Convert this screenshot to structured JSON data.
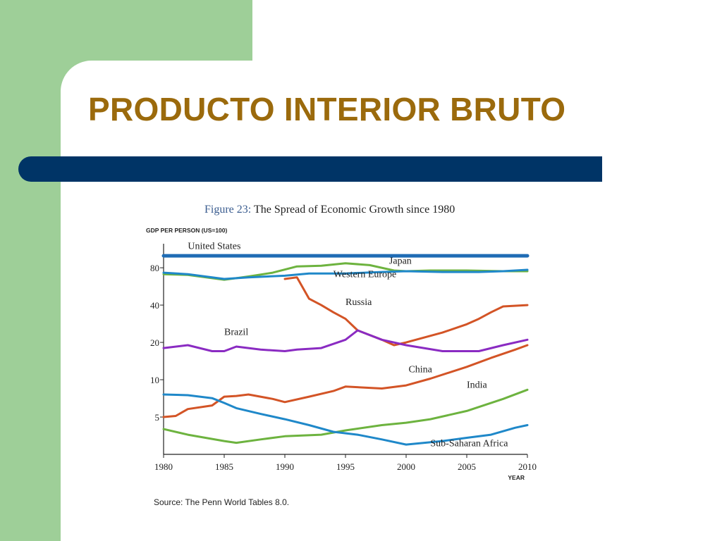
{
  "slide": {
    "title": "PRODUCTO INTERIOR BRUTO",
    "accent_green": "#9ecf98",
    "title_color": "#9b6a0c",
    "bar_color": "#003466"
  },
  "figure": {
    "number": "Figure 23:",
    "caption": "The Spread of Economic Growth since 1980",
    "source": "Source: The Penn World Tables 8.0."
  },
  "chart_data": {
    "type": "line",
    "ylabel": "GDP PER PERSON (US=100)",
    "xlabel": "YEAR",
    "y_scale": "log",
    "xlim": [
      1980,
      2010
    ],
    "ylim": [
      2.5,
      125
    ],
    "x_ticks": [
      1980,
      1985,
      1990,
      1995,
      2000,
      2005,
      2010
    ],
    "y_ticks": [
      5,
      10,
      20,
      40,
      80
    ],
    "grid": false,
    "legend": "inline labels",
    "series": [
      {
        "name": "United States",
        "color": "#1f6cb5",
        "width": 5,
        "points": [
          [
            1980,
            100
          ],
          [
            2010,
            100
          ]
        ]
      },
      {
        "name": "Japan",
        "color": "#6db33f",
        "width": 3,
        "points": [
          [
            1980,
            71
          ],
          [
            1982,
            70
          ],
          [
            1985,
            64
          ],
          [
            1987,
            68
          ],
          [
            1989,
            73
          ],
          [
            1991,
            82
          ],
          [
            1993,
            83
          ],
          [
            1995,
            87
          ],
          [
            1997,
            84
          ],
          [
            1999,
            76
          ],
          [
            2000,
            75
          ],
          [
            2002,
            76
          ],
          [
            2005,
            76
          ],
          [
            2008,
            75
          ],
          [
            2010,
            75
          ]
        ]
      },
      {
        "name": "Western Europe",
        "color": "#1f88c9",
        "width": 3,
        "points": [
          [
            1980,
            73
          ],
          [
            1982,
            71
          ],
          [
            1985,
            65
          ],
          [
            1987,
            67
          ],
          [
            1990,
            69
          ],
          [
            1992,
            72
          ],
          [
            1995,
            72
          ],
          [
            1998,
            74
          ],
          [
            2000,
            75
          ],
          [
            2003,
            74
          ],
          [
            2006,
            74
          ],
          [
            2008,
            75
          ],
          [
            2010,
            77
          ]
        ]
      },
      {
        "name": "Russia",
        "color": "#d35426",
        "width": 3,
        "points": [
          [
            1990,
            65
          ],
          [
            1991,
            67
          ],
          [
            1992,
            45
          ],
          [
            1993,
            40
          ],
          [
            1994,
            35
          ],
          [
            1995,
            31
          ],
          [
            1996,
            25
          ],
          [
            1998,
            21
          ],
          [
            1999,
            19
          ],
          [
            2000,
            20
          ],
          [
            2003,
            24
          ],
          [
            2005,
            28
          ],
          [
            2006,
            31
          ],
          [
            2007,
            35
          ],
          [
            2008,
            39
          ],
          [
            2010,
            40
          ]
        ]
      },
      {
        "name": "Brazil",
        "color": "#8a2bc2",
        "width": 3,
        "points": [
          [
            1980,
            18
          ],
          [
            1982,
            19
          ],
          [
            1984,
            17
          ],
          [
            1985,
            17
          ],
          [
            1986,
            18.5
          ],
          [
            1988,
            17.5
          ],
          [
            1990,
            17
          ],
          [
            1991,
            17.5
          ],
          [
            1993,
            18
          ],
          [
            1995,
            21
          ],
          [
            1996,
            25
          ],
          [
            1998,
            21
          ],
          [
            2000,
            19
          ],
          [
            2003,
            17
          ],
          [
            2006,
            17
          ],
          [
            2008,
            19
          ],
          [
            2010,
            21
          ]
        ]
      },
      {
        "name": "China",
        "color": "#d35426",
        "width": 3,
        "points": [
          [
            1980,
            5
          ],
          [
            1981,
            5.1
          ],
          [
            1982,
            5.8
          ],
          [
            1984,
            6.2
          ],
          [
            1985,
            7.3
          ],
          [
            1986,
            7.4
          ],
          [
            1987,
            7.6
          ],
          [
            1989,
            7.0
          ],
          [
            1990,
            6.6
          ],
          [
            1992,
            7.3
          ],
          [
            1994,
            8.1
          ],
          [
            1995,
            8.8
          ],
          [
            1998,
            8.5
          ],
          [
            2000,
            9.0
          ],
          [
            2002,
            10.2
          ],
          [
            2005,
            12.7
          ],
          [
            2007,
            15.0
          ],
          [
            2009,
            17.5
          ],
          [
            2010,
            19.0
          ]
        ]
      },
      {
        "name": "India",
        "color": "#6db33f",
        "width": 3,
        "points": [
          [
            1980,
            4.0
          ],
          [
            1982,
            3.6
          ],
          [
            1985,
            3.2
          ],
          [
            1986,
            3.1
          ],
          [
            1988,
            3.3
          ],
          [
            1990,
            3.5
          ],
          [
            1993,
            3.6
          ],
          [
            1995,
            3.9
          ],
          [
            1998,
            4.3
          ],
          [
            2000,
            4.5
          ],
          [
            2002,
            4.8
          ],
          [
            2005,
            5.6
          ],
          [
            2008,
            7.0
          ],
          [
            2010,
            8.3
          ]
        ]
      },
      {
        "name": "Sub-Saharan Africa",
        "color": "#1f88c9",
        "width": 3,
        "points": [
          [
            1980,
            7.6
          ],
          [
            1982,
            7.5
          ],
          [
            1984,
            7.1
          ],
          [
            1985,
            6.5
          ],
          [
            1986,
            5.9
          ],
          [
            1988,
            5.3
          ],
          [
            1990,
            4.8
          ],
          [
            1992,
            4.3
          ],
          [
            1994,
            3.8
          ],
          [
            1996,
            3.6
          ],
          [
            1998,
            3.3
          ],
          [
            2000,
            3.0
          ],
          [
            2003,
            3.2
          ],
          [
            2005,
            3.4
          ],
          [
            2007,
            3.6
          ],
          [
            2009,
            4.1
          ],
          [
            2010,
            4.3
          ]
        ]
      }
    ],
    "labels": [
      {
        "text": "United States",
        "x": 1982,
        "y": 113
      },
      {
        "text": "Japan",
        "x": 1998.6,
        "y": 86
      },
      {
        "text": "Western Europe",
        "x": 1994,
        "y": 67
      },
      {
        "text": "Russia",
        "x": 1995,
        "y": 40
      },
      {
        "text": "Brazil",
        "x": 1985,
        "y": 23
      },
      {
        "text": "China",
        "x": 2000.2,
        "y": 11.5
      },
      {
        "text": "India",
        "x": 2005,
        "y": 8.6
      },
      {
        "text": "Sub-Saharan Africa",
        "x": 2002,
        "y": 2.9
      }
    ]
  }
}
